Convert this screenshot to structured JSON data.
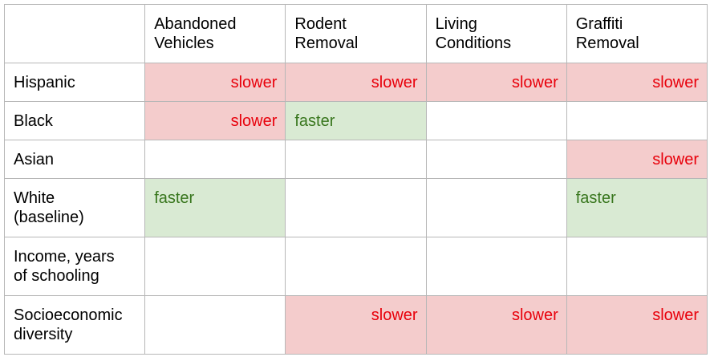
{
  "columns": [
    "",
    "Abandoned Vehicles",
    "Rodent Removal",
    "Living Conditions",
    "Graffiti Removal"
  ],
  "column_lines": [
    [],
    [
      "Abandoned",
      "Vehicles"
    ],
    [
      "Rodent",
      "Removal"
    ],
    [
      "Living",
      "Conditions"
    ],
    [
      "Graffiti",
      "Removal"
    ]
  ],
  "rows": [
    {
      "label_lines": [
        "Hispanic"
      ],
      "cells": [
        "slower",
        "slower",
        "slower",
        "slower"
      ]
    },
    {
      "label_lines": [
        "Black"
      ],
      "cells": [
        "slower",
        "faster",
        "",
        ""
      ]
    },
    {
      "label_lines": [
        "Asian"
      ],
      "cells": [
        "",
        "",
        "",
        "slower"
      ]
    },
    {
      "label_lines": [
        "White",
        "(baseline)"
      ],
      "cells": [
        "faster",
        "",
        "",
        "faster"
      ]
    },
    {
      "label_lines": [
        "Income, years",
        "of schooling"
      ],
      "cells": [
        "",
        "",
        "",
        ""
      ]
    },
    {
      "label_lines": [
        "Socioeconomic",
        "diversity"
      ],
      "cells": [
        "",
        "slower",
        "slower",
        "slower"
      ]
    }
  ],
  "colors": {
    "slower_bg": "#f4cccc",
    "slower_text": "#e8000b",
    "faster_bg": "#d9ead3",
    "faster_text": "#38761d",
    "border": "#b7b7b7"
  }
}
